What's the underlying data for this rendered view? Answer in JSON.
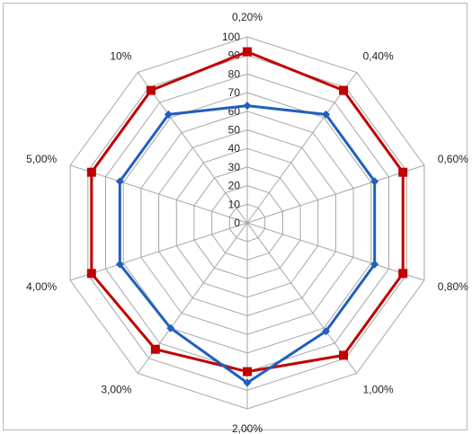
{
  "chart_data": {
    "type": "radar",
    "title": "",
    "categories": [
      "0,20%",
      "0,40%",
      "0,60%",
      "0,80%",
      "1,00%",
      "2,00%",
      "3,00%",
      "4,00%",
      "5,00%",
      "10%"
    ],
    "rlim": [
      0,
      100
    ],
    "ticks": [
      "0",
      "10",
      "20",
      "30",
      "40",
      "50",
      "60",
      "70",
      "80",
      "90",
      "100"
    ],
    "grid": true,
    "legend": "none",
    "series": [
      {
        "color": "#c00000",
        "marker": "square",
        "values": [
          92,
          88,
          88,
          88,
          88,
          80,
          84,
          88,
          88,
          88
        ]
      },
      {
        "color": "#1f5fbf",
        "marker": "diamond",
        "values": [
          63,
          72,
          72,
          72,
          72,
          86,
          70,
          72,
          72,
          72
        ]
      }
    ]
  }
}
